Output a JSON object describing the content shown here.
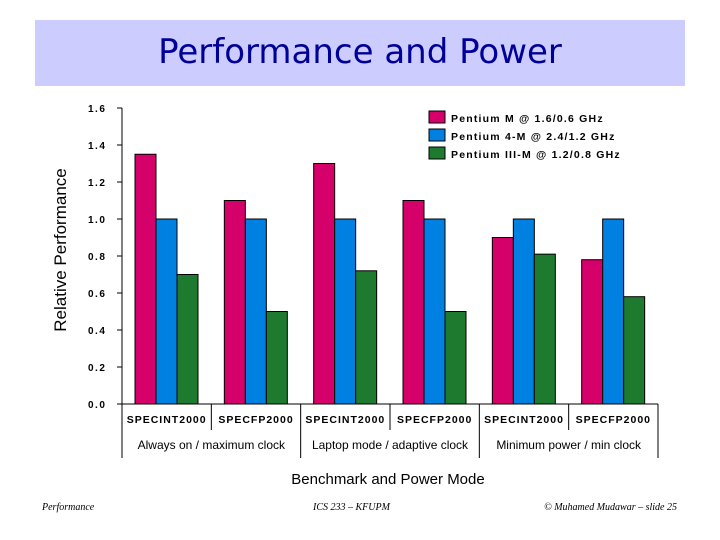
{
  "slide": {
    "title": "Performance and Power",
    "footer_left": "Performance",
    "footer_center": "ICS 233 – KFUPM",
    "footer_right": "© Muhamed Mudawar – slide 25"
  },
  "colors": {
    "title_bg": "#ccccff",
    "title_text": "#000099",
    "pentium_m": "#d6006b",
    "pentium_4m": "#0080e0",
    "pentium_3m": "#1e7a2e"
  },
  "chart_data": {
    "type": "bar",
    "title": "",
    "ylabel": "Relative Performance",
    "xlabel": "Benchmark and Power Mode",
    "ylim": [
      0,
      1.6
    ],
    "yticks": [
      "1.6",
      "1.4",
      "1.2",
      "1.0",
      "0.8",
      "0.6",
      "0.4",
      "0.2",
      "0.0"
    ],
    "categories": [
      "SPECINT2000",
      "SPECFP2000",
      "SPECINT2000",
      "SPECFP2000",
      "SPECINT2000",
      "SPECFP2000"
    ],
    "groups": [
      "Always on / maximum clock",
      "Laptop mode / adaptive clock",
      "Minimum power / min clock"
    ],
    "legend_position": "top-right",
    "grid": false,
    "series": [
      {
        "name": "Pentium M @ 1.6/0.6 GHz",
        "color": "#d6006b",
        "values": [
          1.35,
          1.1,
          1.3,
          1.1,
          0.9,
          0.78
        ]
      },
      {
        "name": "Pentium 4-M @ 2.4/1.2 GHz",
        "color": "#0080e0",
        "values": [
          1.0,
          1.0,
          1.0,
          1.0,
          1.0,
          1.0
        ]
      },
      {
        "name": "Pentium III-M @ 1.2/0.8 GHz",
        "color": "#1e7a2e",
        "values": [
          0.7,
          0.5,
          0.72,
          0.5,
          0.81,
          0.58
        ]
      }
    ]
  }
}
